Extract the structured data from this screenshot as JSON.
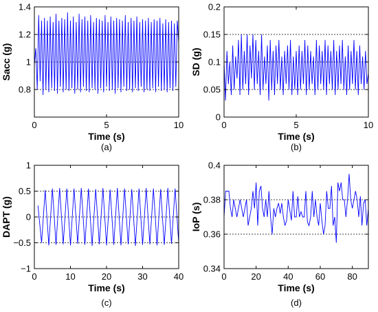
{
  "chart_data": [
    {
      "caption": "(a)",
      "type": "line",
      "xlabel": "Time (s)",
      "ylabel": "Sacc (g)",
      "xlim": [
        0,
        10
      ],
      "ylim": [
        0.6,
        1.4
      ],
      "xticks": [
        0,
        5,
        10
      ],
      "yticks": [
        0.8,
        1,
        1.2,
        1.4
      ],
      "ytick_labels": [
        "0.8",
        "1",
        "1.2",
        "1.4"
      ],
      "hlines": [
        0.8,
        1.0,
        1.2
      ],
      "line_color": "#0000ff",
      "x": [
        0.0,
        0.1,
        0.2,
        0.3,
        0.4,
        0.5,
        0.6,
        0.7,
        0.8,
        0.9,
        1.0,
        1.1,
        1.2,
        1.3,
        1.4,
        1.5,
        1.6,
        1.7,
        1.8,
        1.9,
        2.0,
        2.1,
        2.2,
        2.3,
        2.4,
        2.5,
        2.6,
        2.7,
        2.8,
        2.9,
        3.0,
        3.1,
        3.2,
        3.3,
        3.4,
        3.5,
        3.6,
        3.7,
        3.8,
        3.9,
        4.0,
        4.1,
        4.2,
        4.3,
        4.4,
        4.5,
        4.6,
        4.7,
        4.8,
        4.9,
        5.0,
        5.1,
        5.2,
        5.3,
        5.4,
        5.5,
        5.6,
        5.7,
        5.8,
        5.9,
        6.0,
        6.1,
        6.2,
        6.3,
        6.4,
        6.5,
        6.6,
        6.7,
        6.8,
        6.9,
        7.0,
        7.1,
        7.2,
        7.3,
        7.4,
        7.5,
        7.6,
        7.7,
        7.8,
        7.9,
        8.0,
        8.1,
        8.2,
        8.3,
        8.4,
        8.5,
        8.6,
        8.7,
        8.8,
        8.9,
        9.0,
        9.1,
        9.2,
        9.3,
        9.4,
        9.5,
        9.6,
        9.7,
        9.8,
        9.9,
        10.0
      ],
      "y": [
        0.98,
        1.1,
        0.8,
        1.34,
        0.86,
        1.3,
        0.76,
        1.32,
        0.8,
        1.3,
        0.78,
        1.33,
        0.81,
        1.29,
        0.79,
        1.35,
        0.77,
        1.3,
        0.82,
        1.32,
        0.78,
        1.31,
        0.8,
        1.36,
        0.79,
        1.3,
        0.81,
        1.33,
        0.77,
        1.29,
        0.8,
        1.35,
        0.78,
        1.31,
        0.82,
        1.33,
        0.79,
        1.3,
        0.78,
        1.34,
        0.81,
        1.29,
        0.8,
        1.32,
        0.77,
        1.31,
        0.81,
        1.3,
        0.78,
        1.34,
        0.82,
        1.29,
        0.79,
        1.33,
        0.8,
        1.3,
        0.77,
        1.32,
        0.81,
        1.31,
        0.78,
        1.3,
        0.82,
        1.34,
        0.79,
        1.29,
        0.8,
        1.32,
        0.78,
        1.3,
        0.81,
        1.33,
        0.79,
        1.29,
        0.82,
        1.31,
        0.78,
        1.3,
        0.8,
        1.32,
        0.79,
        1.29,
        0.81,
        1.31,
        0.78,
        1.3,
        0.82,
        1.32,
        0.79,
        1.28,
        0.8,
        1.31,
        0.78,
        1.29,
        0.81,
        1.3,
        0.79,
        1.28,
        0.82,
        1.3,
        1.14
      ]
    },
    {
      "caption": "(b)",
      "type": "line",
      "xlabel": "Time (s)",
      "ylabel": "SD (g)",
      "xlim": [
        0,
        10
      ],
      "ylim": [
        0,
        0.2
      ],
      "xticks": [
        0,
        5,
        10
      ],
      "yticks": [
        0,
        0.05,
        0.1,
        0.15,
        0.2
      ],
      "ytick_labels": [
        "0",
        "0.05",
        "0.1",
        "0.15",
        "0.2"
      ],
      "hlines": [
        0.05,
        0.1,
        0.15
      ],
      "line_color": "#0000ff",
      "x": [
        0.0,
        0.1,
        0.2,
        0.3,
        0.4,
        0.5,
        0.6,
        0.7,
        0.8,
        0.9,
        1.0,
        1.1,
        1.2,
        1.3,
        1.4,
        1.5,
        1.6,
        1.7,
        1.8,
        1.9,
        2.0,
        2.1,
        2.2,
        2.3,
        2.4,
        2.5,
        2.6,
        2.7,
        2.8,
        2.9,
        3.0,
        3.1,
        3.2,
        3.3,
        3.4,
        3.5,
        3.6,
        3.7,
        3.8,
        3.9,
        4.0,
        4.1,
        4.2,
        4.3,
        4.4,
        4.5,
        4.6,
        4.7,
        4.8,
        4.9,
        5.0,
        5.1,
        5.2,
        5.3,
        5.4,
        5.5,
        5.6,
        5.7,
        5.8,
        5.9,
        6.0,
        6.1,
        6.2,
        6.3,
        6.4,
        6.5,
        6.6,
        6.7,
        6.8,
        6.9,
        7.0,
        7.1,
        7.2,
        7.3,
        7.4,
        7.5,
        7.6,
        7.7,
        7.8,
        7.9,
        8.0,
        8.1,
        8.2,
        8.3,
        8.4,
        8.5,
        8.6,
        8.7,
        8.8,
        8.9,
        9.0,
        9.1,
        9.2,
        9.3,
        9.4,
        9.5,
        9.6,
        9.7,
        9.8,
        9.9,
        10.0
      ],
      "y": [
        0.1,
        0.03,
        0.12,
        0.06,
        0.1,
        0.04,
        0.13,
        0.05,
        0.11,
        0.07,
        0.14,
        0.04,
        0.15,
        0.05,
        0.12,
        0.06,
        0.15,
        0.04,
        0.13,
        0.07,
        0.15,
        0.05,
        0.14,
        0.06,
        0.12,
        0.04,
        0.15,
        0.05,
        0.11,
        0.06,
        0.13,
        0.03,
        0.14,
        0.05,
        0.12,
        0.04,
        0.13,
        0.06,
        0.14,
        0.05,
        0.11,
        0.04,
        0.12,
        0.06,
        0.13,
        0.05,
        0.14,
        0.04,
        0.11,
        0.05,
        0.12,
        0.04,
        0.13,
        0.05,
        0.12,
        0.06,
        0.14,
        0.04,
        0.13,
        0.05,
        0.12,
        0.06,
        0.11,
        0.04,
        0.14,
        0.05,
        0.13,
        0.06,
        0.12,
        0.05,
        0.14,
        0.04,
        0.13,
        0.06,
        0.12,
        0.05,
        0.14,
        0.04,
        0.12,
        0.05,
        0.13,
        0.06,
        0.14,
        0.05,
        0.11,
        0.04,
        0.13,
        0.05,
        0.12,
        0.06,
        0.14,
        0.05,
        0.12,
        0.04,
        0.13,
        0.06,
        0.11,
        0.05,
        0.12,
        0.06,
        0.08
      ]
    },
    {
      "caption": "(c)",
      "type": "line",
      "xlabel": "Time (s)",
      "ylabel": "DAPT (g)",
      "xlim": [
        0,
        40
      ],
      "ylim": [
        -1,
        1
      ],
      "xticks": [
        0,
        10,
        20,
        30,
        40
      ],
      "yticks": [
        -1,
        -0.5,
        0,
        0.5,
        1
      ],
      "ytick_labels": [
        "−1",
        "−0.5",
        "0",
        "0.5",
        "1"
      ],
      "hlines": [
        -0.5,
        0,
        0.5
      ],
      "line_color": "#0000ff",
      "x": [
        1,
        2,
        3,
        4,
        5,
        6,
        7,
        8,
        9,
        10,
        11,
        12,
        13,
        14,
        15,
        16,
        17,
        18,
        19,
        20,
        21,
        22,
        23,
        24,
        25,
        26,
        27,
        28,
        29,
        30,
        31,
        32,
        33,
        34,
        35,
        36,
        37,
        38,
        39,
        40
      ],
      "y": [
        0.22,
        -0.5,
        0.52,
        -0.55,
        0.55,
        -0.54,
        0.56,
        -0.53,
        0.55,
        -0.55,
        0.55,
        -0.52,
        0.56,
        -0.54,
        0.55,
        -0.56,
        0.54,
        -0.53,
        0.56,
        -0.55,
        0.53,
        -0.54,
        0.56,
        -0.55,
        0.55,
        -0.53,
        0.54,
        -0.56,
        0.55,
        -0.54,
        0.56,
        -0.53,
        0.55,
        -0.55,
        0.54,
        -0.54,
        0.56,
        -0.52,
        0.55,
        -0.5
      ]
    },
    {
      "caption": "(d)",
      "type": "line",
      "xlabel": "Time (s)",
      "ylabel": "IoP (s)",
      "xlim": [
        0,
        90
      ],
      "ylim": [
        0.34,
        0.4
      ],
      "xticks": [
        0,
        20,
        40,
        60,
        80
      ],
      "yticks": [
        0.34,
        0.36,
        0.38,
        0.4
      ],
      "ytick_labels": [
        "0.34",
        "0.36",
        "0.38",
        "0.4"
      ],
      "hlines": [
        0.36,
        0.38
      ],
      "line_color": "#0000ff",
      "x": [
        0,
        1,
        2,
        3,
        4,
        5,
        6,
        7,
        8,
        9,
        10,
        11,
        12,
        13,
        14,
        15,
        16,
        17,
        18,
        19,
        20,
        21,
        22,
        23,
        24,
        25,
        26,
        27,
        28,
        29,
        30,
        31,
        32,
        33,
        34,
        35,
        36,
        37,
        38,
        39,
        40,
        41,
        42,
        43,
        44,
        45,
        46,
        47,
        48,
        49,
        50,
        51,
        52,
        53,
        54,
        55,
        56,
        57,
        58,
        59,
        60,
        61,
        62,
        63,
        64,
        65,
        66,
        67,
        68,
        69,
        70,
        71,
        72,
        73,
        74,
        75,
        76,
        77,
        78,
        79,
        80,
        81,
        82,
        83,
        84,
        85,
        86,
        87,
        88,
        89,
        90
      ],
      "y": [
        0.37,
        0.385,
        0.385,
        0.385,
        0.375,
        0.37,
        0.38,
        0.375,
        0.37,
        0.375,
        0.38,
        0.375,
        0.37,
        0.375,
        0.38,
        0.365,
        0.37,
        0.375,
        0.385,
        0.375,
        0.39,
        0.365,
        0.385,
        0.388,
        0.375,
        0.37,
        0.38,
        0.37,
        0.385,
        0.37,
        0.36,
        0.375,
        0.37,
        0.375,
        0.378,
        0.372,
        0.378,
        0.37,
        0.365,
        0.368,
        0.38,
        0.374,
        0.368,
        0.385,
        0.37,
        0.37,
        0.382,
        0.37,
        0.373,
        0.37,
        0.37,
        0.385,
        0.367,
        0.365,
        0.37,
        0.385,
        0.37,
        0.38,
        0.37,
        0.365,
        0.378,
        0.368,
        0.36,
        0.365,
        0.385,
        0.375,
        0.375,
        0.388,
        0.365,
        0.37,
        0.355,
        0.39,
        0.385,
        0.39,
        0.38,
        0.38,
        0.37,
        0.38,
        0.395,
        0.38,
        0.375,
        0.38,
        0.385,
        0.38,
        0.37,
        0.382,
        0.365,
        0.378,
        0.38,
        0.365,
        0.375
      ]
    }
  ]
}
